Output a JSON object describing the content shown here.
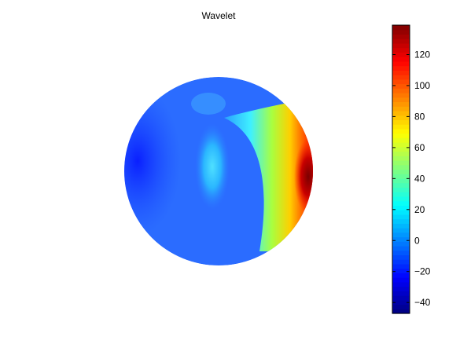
{
  "chart_data": {
    "type": "heatmap",
    "title": "Wavelet",
    "xlabel": "",
    "ylabel": "",
    "projection": "orthographic sphere",
    "colormap": "jet",
    "colorbar": {
      "clim": [
        -47,
        139
      ],
      "ticks": [
        -40,
        -20,
        0,
        20,
        40,
        60,
        80,
        100,
        120
      ],
      "tick_labels": [
        "−40",
        "−20",
        "0",
        "20",
        "40",
        "60",
        "80",
        "100",
        "120"
      ],
      "placement": "right"
    },
    "field_description_points": [
      {
        "region": "left limb",
        "value": -40
      },
      {
        "region": "central body",
        "value": -20
      },
      {
        "region": "central lobe",
        "value": 10
      },
      {
        "region": "right ridge",
        "value": 60
      },
      {
        "region": "right limb peak",
        "value": 139
      }
    ],
    "grid": false
  }
}
